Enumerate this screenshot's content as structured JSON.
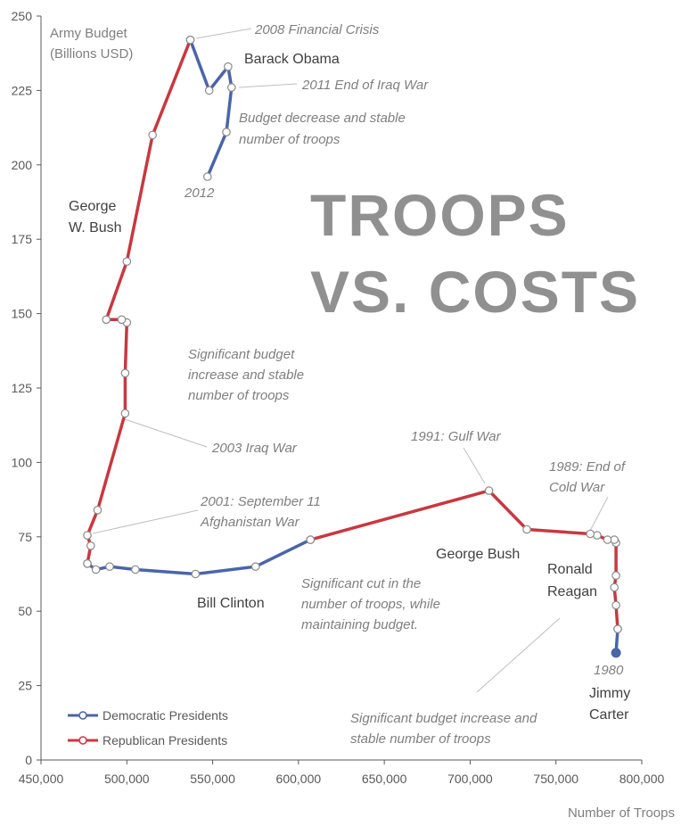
{
  "chart_data": {
    "type": "line",
    "title": [
      "TROOPS",
      "VS. COSTS"
    ],
    "xlabel": "Number of Troops",
    "ylabel": [
      "Army Budget",
      "(Billions USD)"
    ],
    "xlim": [
      450000,
      800000
    ],
    "ylim": [
      0,
      250
    ],
    "x_ticks": [
      "450,000",
      "500,000",
      "550,000",
      "600,000",
      "650,000",
      "700,000",
      "750,000",
      "800,000"
    ],
    "y_ticks": [
      "0",
      "25",
      "50",
      "75",
      "100",
      "125",
      "150",
      "175",
      "200",
      "225",
      "250"
    ],
    "grid": false,
    "legend_position": "bottom-left",
    "colors": {
      "Democratic Presidents": "#4a65a8",
      "Republican Presidents": "#c8383f"
    },
    "series": [
      {
        "name": "Democratic Presidents",
        "segments": [
          [
            [
              785000,
              36
            ],
            [
              786000,
              44
            ]
          ],
          [
            [
              477000,
              66
            ],
            [
              482000,
              64
            ],
            [
              490000,
              65
            ],
            [
              505000,
              64
            ],
            [
              540000,
              62.5
            ],
            [
              575000,
              65
            ],
            [
              607000,
              74
            ]
          ],
          [
            [
              537000,
              242
            ],
            [
              548000,
              225
            ],
            [
              559000,
              233
            ],
            [
              561000,
              226
            ],
            [
              558000,
              211
            ],
            [
              547000,
              196
            ]
          ]
        ]
      },
      {
        "name": "Republican Presidents",
        "segments": [
          [
            [
              786000,
              44
            ],
            [
              785000,
              52
            ],
            [
              784000,
              58
            ],
            [
              785000,
              62
            ],
            [
              785000,
              73
            ],
            [
              784000,
              74
            ],
            [
              780000,
              74
            ],
            [
              774000,
              75.5
            ],
            [
              770000,
              76
            ],
            [
              733000,
              77.5
            ],
            [
              711000,
              90.5
            ],
            [
              607000,
              74
            ]
          ],
          [
            [
              477000,
              66
            ],
            [
              479000,
              72
            ],
            [
              477000,
              75.5
            ],
            [
              483000,
              84
            ],
            [
              499000,
              116.5
            ],
            [
              499000,
              130
            ],
            [
              500000,
              147
            ],
            [
              497000,
              148
            ],
            [
              488000,
              148
            ],
            [
              500000,
              167.5
            ],
            [
              515000,
              210
            ],
            [
              537000,
              242
            ]
          ]
        ]
      }
    ],
    "president_labels": [
      "Barack Obama",
      "George",
      "W. Bush",
      "Bill Clinton",
      "George Bush",
      "Ronald",
      "Reagan",
      "Jimmy",
      "Carter"
    ],
    "annotations": {
      "crisis_2008": "2008 Financial Crisis",
      "iraq_end_2011": "2011 End of Iraq War",
      "decrease_line1": "Budget decrease and stable",
      "decrease_line2": "number of troops",
      "year_2012": "2012",
      "increase_line1": "Significant budget",
      "increase_line2": "increase and stable",
      "increase_line3": "number of troops",
      "iraq_war_2003": "2003 Iraq War",
      "sept11_line1": "2001: September 11",
      "sept11_line2": "Afghanistan War",
      "gulf_war": "1991: Gulf War",
      "cold_war_line1": "1989: End of",
      "cold_war_line2": "Cold War",
      "cut_line1": "Significant cut in the",
      "cut_line2": "number of troops, while",
      "cut_line3": "maintaining budget.",
      "reagan_line1": "Significant budget increase and",
      "reagan_line2": "stable number of troops",
      "year_1980": "1980"
    }
  }
}
